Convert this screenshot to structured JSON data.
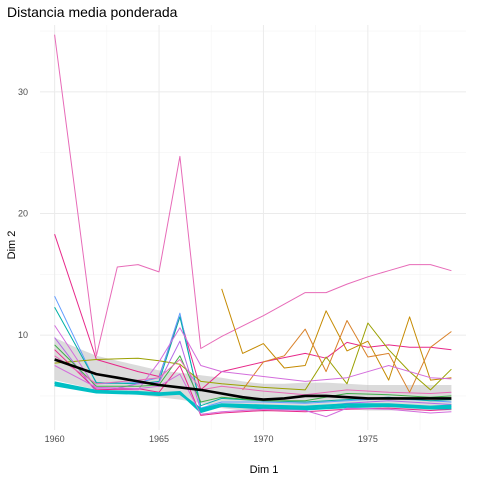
{
  "chart_data": {
    "type": "line",
    "title": "Distancia media ponderada",
    "xlabel": "Dim 1",
    "ylabel": "Dim 2",
    "xlim": [
      1959.3,
      1979.7
    ],
    "ylim": [
      2.2,
      35.5
    ],
    "x_ticks": [
      1960,
      1965,
      1970,
      1975
    ],
    "y_ticks": [
      10,
      20,
      30
    ],
    "x_tick_labels": [
      "1960",
      "1965",
      "1970",
      "1975"
    ],
    "y_tick_labels": [
      "10",
      "20",
      "30"
    ],
    "grid": true,
    "legend": "none",
    "colors": {
      "mean_line": "#000000",
      "ribbon": "#bdbdbd",
      "pink": "#e7298a",
      "magenta": "#d36ddc",
      "cyan": "#00bfc4",
      "olive": "#9aa000",
      "gold": "#c58a00",
      "orange": "#d9822b",
      "blue": "#619cff",
      "violet": "#b469e6",
      "teal": "#00b0a6",
      "green": "#3fae49"
    },
    "series": [
      {
        "color": "#e76bb8",
        "x": [
          1960,
          1962,
          1963,
          1964,
          1965,
          1966,
          1967,
          1968,
          1970,
          1972,
          1973,
          1974,
          1975,
          1976,
          1977,
          1978,
          1979
        ],
        "y": [
          34.7,
          8.3,
          15.6,
          15.8,
          15.2,
          24.7,
          8.9,
          9.9,
          11.6,
          13.5,
          13.5,
          14.2,
          14.8,
          15.3,
          15.8,
          15.8,
          15.3
        ]
      },
      {
        "color": "#e7298a",
        "x": [
          1960,
          1962,
          1964,
          1965,
          1966,
          1967,
          1968,
          1970,
          1972,
          1973,
          1974,
          1975,
          1976,
          1977,
          1978,
          1979
        ],
        "y": [
          18.3,
          8.0,
          7.0,
          6.6,
          11.5,
          5.5,
          7.0,
          7.8,
          8.5,
          8.1,
          9.4,
          9.0,
          9.2,
          9.0,
          9.0,
          8.8
        ]
      },
      {
        "color": "#619cff",
        "x": [
          1960,
          1962,
          1964,
          1965,
          1966,
          1967,
          1968,
          1970,
          1972,
          1974,
          1976,
          1978,
          1979
        ],
        "y": [
          13.2,
          6.0,
          6.1,
          6.5,
          11.8,
          4.0,
          4.5,
          4.5,
          4.4,
          4.6,
          4.8,
          4.6,
          4.5
        ]
      },
      {
        "color": "#00b0a6",
        "x": [
          1960,
          1962,
          1964,
          1965,
          1966,
          1967,
          1968,
          1970,
          1972,
          1974,
          1976,
          1978,
          1979
        ],
        "y": [
          12.3,
          6.1,
          6.0,
          6.2,
          11.5,
          4.2,
          4.8,
          4.6,
          4.5,
          4.7,
          4.9,
          4.6,
          4.7
        ]
      },
      {
        "color": "#c58a00",
        "x": [
          1968,
          1969,
          1970,
          1971,
          1972,
          1973,
          1974,
          1975,
          1976,
          1977,
          1978,
          1979
        ],
        "y": [
          13.8,
          8.5,
          9.3,
          7.3,
          7.5,
          12.0,
          8.7,
          9.5,
          6.3,
          11.5,
          6.3,
          6.5
        ]
      },
      {
        "color": "#d9822b",
        "x": [
          1969,
          1970,
          1971,
          1972,
          1973,
          1974,
          1975,
          1976,
          1977,
          1978,
          1979
        ],
        "y": [
          5.5,
          7.8,
          8.3,
          10.5,
          7.0,
          11.2,
          8.2,
          8.5,
          5.3,
          9.0,
          10.3
        ]
      },
      {
        "color": "#9aa000",
        "x": [
          1960,
          1962,
          1964,
          1965,
          1966,
          1967,
          1968,
          1970,
          1972,
          1973,
          1974,
          1975,
          1976,
          1977,
          1978,
          1979
        ],
        "y": [
          7.7,
          8.0,
          8.1,
          7.9,
          7.6,
          6.2,
          6.0,
          5.7,
          5.5,
          8.2,
          6.0,
          11.0,
          8.8,
          7.0,
          5.5,
          7.2
        ]
      },
      {
        "color": "#d36ddc",
        "x": [
          1960,
          1962,
          1964,
          1965,
          1966,
          1967,
          1968,
          1970,
          1972,
          1974,
          1976,
          1978,
          1979
        ],
        "y": [
          10.8,
          5.6,
          5.5,
          7.8,
          10.6,
          7.5,
          7.0,
          6.6,
          6.2,
          6.5,
          7.5,
          6.5,
          6.4
        ]
      },
      {
        "color": "#b469e6",
        "x": [
          1960,
          1962,
          1964,
          1965,
          1966,
          1967,
          1968,
          1970,
          1972,
          1974,
          1976,
          1978,
          1979
        ],
        "y": [
          9.8,
          5.3,
          6.0,
          6.1,
          9.5,
          3.8,
          4.3,
          4.2,
          4.0,
          4.4,
          4.6,
          4.4,
          4.3
        ]
      },
      {
        "color": "#3fae49",
        "x": [
          1960,
          1962,
          1964,
          1965,
          1966,
          1967,
          1968,
          1970,
          1972,
          1974,
          1976,
          1978,
          1979
        ],
        "y": [
          9.2,
          5.8,
          5.8,
          5.9,
          8.3,
          4.5,
          4.9,
          4.6,
          4.6,
          5.2,
          5.1,
          4.9,
          5.0
        ]
      },
      {
        "color": "#e7298a",
        "x": [
          1960,
          1962,
          1964,
          1965,
          1966,
          1967,
          1968,
          1970,
          1972,
          1974,
          1976,
          1978,
          1979
        ],
        "y": [
          8.8,
          5.5,
          5.6,
          5.3,
          7.5,
          3.4,
          3.6,
          3.8,
          3.7,
          3.9,
          4.0,
          3.8,
          3.9
        ]
      },
      {
        "color": "#00bfc4",
        "x": [
          1960,
          1962,
          1964,
          1965,
          1966,
          1967,
          1968,
          1970,
          1972,
          1974,
          1976,
          1978,
          1979
        ],
        "y": [
          6.1,
          5.4,
          5.3,
          5.2,
          5.3,
          3.7,
          4.2,
          4.0,
          3.9,
          4.1,
          4.2,
          4.0,
          4.0
        ]
      },
      {
        "color": "#00bfc4",
        "x": [
          1960,
          1962,
          1964,
          1965,
          1966,
          1967,
          1968,
          1970,
          1972,
          1974,
          1976,
          1978,
          1979
        ],
        "y": [
          5.9,
          5.3,
          5.2,
          5.1,
          5.2,
          3.9,
          4.3,
          4.2,
          4.1,
          4.3,
          4.3,
          4.1,
          4.2
        ]
      },
      {
        "color": "#e76bb8",
        "x": [
          1960,
          1962,
          1964,
          1965,
          1966,
          1967,
          1968,
          1970,
          1972,
          1974,
          1976,
          1978,
          1979
        ],
        "y": [
          8.3,
          6.0,
          6.3,
          6.5,
          8.0,
          5.5,
          5.8,
          5.4,
          5.1,
          5.5,
          5.3,
          5.2,
          5.3
        ]
      },
      {
        "color": "#d36ddc",
        "x": [
          1960,
          1962,
          1964,
          1965,
          1966,
          1967,
          1968,
          1970,
          1972,
          1973,
          1974,
          1976,
          1978,
          1979
        ],
        "y": [
          7.5,
          5.7,
          5.6,
          5.8,
          6.8,
          3.5,
          3.7,
          3.9,
          3.8,
          3.3,
          4.0,
          3.9,
          3.6,
          3.7
        ]
      }
    ],
    "mean_line": {
      "color": "#000000",
      "x": [
        1960,
        1961,
        1962,
        1963,
        1964,
        1965,
        1966,
        1967,
        1968,
        1969,
        1970,
        1971,
        1972,
        1973,
        1974,
        1975,
        1976,
        1977,
        1978,
        1979
      ],
      "y": [
        8.0,
        7.4,
        6.8,
        6.5,
        6.2,
        5.9,
        5.7,
        5.5,
        5.2,
        4.9,
        4.7,
        4.8,
        5.0,
        5.0,
        4.9,
        4.8,
        4.8,
        4.8,
        4.8,
        4.8
      ]
    },
    "ribbon": {
      "color": "#bdbdbd",
      "x": [
        1960,
        1961,
        1962,
        1963,
        1964,
        1965,
        1966,
        1967,
        1968,
        1969,
        1970,
        1971,
        1972,
        1973,
        1974,
        1975,
        1976,
        1977,
        1978,
        1979
      ],
      "lower": [
        6.3,
        5.9,
        5.5,
        5.3,
        5.1,
        4.9,
        4.7,
        4.4,
        4.0,
        3.8,
        3.7,
        3.8,
        3.9,
        3.9,
        3.9,
        3.8,
        3.8,
        3.8,
        3.8,
        3.8
      ],
      "upper": [
        9.8,
        9.0,
        8.3,
        7.9,
        7.5,
        7.1,
        6.9,
        6.7,
        6.5,
        6.2,
        6.0,
        6.0,
        6.1,
        6.1,
        6.0,
        5.9,
        5.9,
        5.9,
        5.9,
        5.9
      ]
    }
  }
}
